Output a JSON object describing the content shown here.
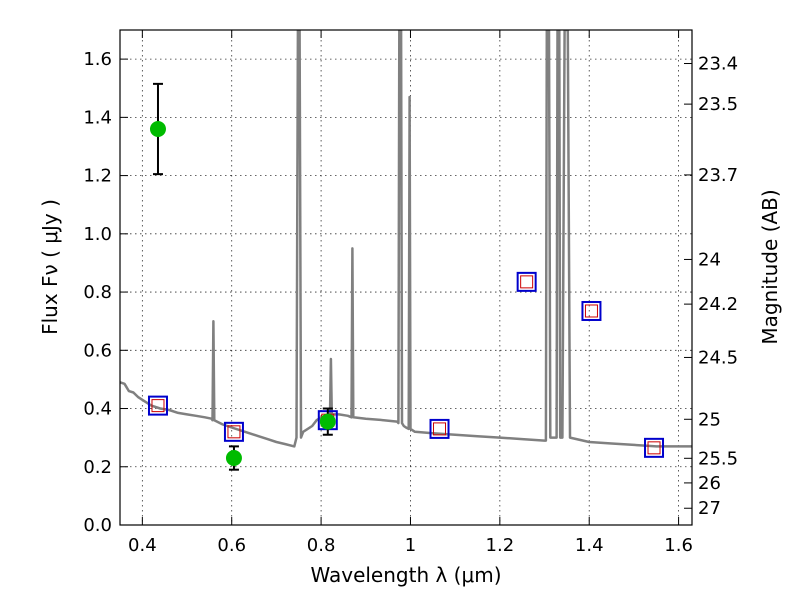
{
  "chart_data": {
    "type": "scatter",
    "xlabel": "Wavelength  λ (μm)",
    "ylabel_left": "Flux  Fν  ( μJy )",
    "ylabel_right": "Magnitude (AB)",
    "xlim": [
      0.35,
      1.63
    ],
    "ylim": [
      0.0,
      1.7
    ],
    "grid": true,
    "x_ticks": [
      {
        "value": 0.4,
        "label": "0.4"
      },
      {
        "value": 0.6,
        "label": "0.6"
      },
      {
        "value": 0.8,
        "label": "0.8"
      },
      {
        "value": 1.0,
        "label": "1"
      },
      {
        "value": 1.2,
        "label": "1.2"
      },
      {
        "value": 1.4,
        "label": "1.4"
      },
      {
        "value": 1.6,
        "label": "1.6"
      }
    ],
    "y_ticks": [
      {
        "value": 0.0,
        "label": "0.0"
      },
      {
        "value": 0.2,
        "label": "0.2"
      },
      {
        "value": 0.4,
        "label": "0.4"
      },
      {
        "value": 0.6,
        "label": "0.6"
      },
      {
        "value": 0.8,
        "label": "0.8"
      },
      {
        "value": 1.0,
        "label": "1.0"
      },
      {
        "value": 1.2,
        "label": "1.2"
      },
      {
        "value": 1.4,
        "label": "1.4"
      },
      {
        "value": 1.6,
        "label": "1.6"
      }
    ],
    "mag_ticks": [
      "23.4",
      "23.5",
      "23.7",
      "24",
      "24.2",
      "24.5",
      "25",
      "25.5",
      "26",
      "27"
    ],
    "colors": {
      "model": "#808080",
      "observed": "#00bb00",
      "observed_error": "#000000",
      "model_photometry_outer": "#0000cc",
      "model_photometry_inner": "#cc0000"
    },
    "series": [
      {
        "type": "line",
        "points": [
          [
            0.35,
            0.49
          ],
          [
            0.36,
            0.485
          ],
          [
            0.37,
            0.46
          ],
          [
            0.38,
            0.455
          ],
          [
            0.39,
            0.44
          ],
          [
            0.4,
            0.43
          ],
          [
            0.42,
            0.41
          ],
          [
            0.44,
            0.4
          ],
          [
            0.46,
            0.395
          ],
          [
            0.48,
            0.385
          ],
          [
            0.5,
            0.38
          ],
          [
            0.52,
            0.375
          ],
          [
            0.54,
            0.37
          ],
          [
            0.555,
            0.365
          ],
          [
            0.557,
            0.36
          ],
          [
            0.559,
            0.7
          ],
          [
            0.561,
            0.36
          ],
          [
            0.58,
            0.345
          ],
          [
            0.6,
            0.335
          ],
          [
            0.62,
            0.325
          ],
          [
            0.64,
            0.315
          ],
          [
            0.66,
            0.305
          ],
          [
            0.68,
            0.295
          ],
          [
            0.7,
            0.285
          ],
          [
            0.72,
            0.278
          ],
          [
            0.74,
            0.27
          ],
          [
            0.745,
            0.3
          ],
          [
            0.748,
            1.7
          ],
          [
            0.752,
            1.7
          ],
          [
            0.755,
            0.3
          ],
          [
            0.76,
            0.32
          ],
          [
            0.78,
            0.34
          ],
          [
            0.79,
            0.36
          ],
          [
            0.8,
            0.37
          ],
          [
            0.815,
            0.375
          ],
          [
            0.82,
            0.38
          ],
          [
            0.822,
            0.57
          ],
          [
            0.824,
            0.38
          ],
          [
            0.84,
            0.38
          ],
          [
            0.86,
            0.375
          ],
          [
            0.868,
            0.37
          ],
          [
            0.87,
            0.95
          ],
          [
            0.872,
            0.37
          ],
          [
            0.9,
            0.365
          ],
          [
            0.94,
            0.36
          ],
          [
            0.97,
            0.355
          ],
          [
            0.973,
            0.35
          ],
          [
            0.975,
            1.7
          ],
          [
            0.979,
            1.7
          ],
          [
            0.981,
            0.35
          ],
          [
            0.985,
            0.34
          ],
          [
            0.99,
            0.335
          ],
          [
            0.996,
            0.33
          ],
          [
            0.998,
            1.47
          ],
          [
            1.0,
            0.33
          ],
          [
            1.01,
            0.32
          ],
          [
            1.05,
            0.315
          ],
          [
            1.1,
            0.31
          ],
          [
            1.15,
            0.305
          ],
          [
            1.2,
            0.3
          ],
          [
            1.25,
            0.295
          ],
          [
            1.3,
            0.29
          ],
          [
            1.303,
            0.29
          ],
          [
            1.305,
            1.7
          ],
          [
            1.31,
            1.7
          ],
          [
            1.313,
            0.3
          ],
          [
            1.32,
            0.3
          ],
          [
            1.327,
            0.3
          ],
          [
            1.329,
            1.7
          ],
          [
            1.333,
            1.7
          ],
          [
            1.335,
            0.3
          ],
          [
            1.34,
            0.3
          ],
          [
            1.345,
            1.7
          ],
          [
            1.352,
            1.7
          ],
          [
            1.357,
            0.3
          ],
          [
            1.4,
            0.285
          ],
          [
            1.45,
            0.28
          ],
          [
            1.5,
            0.275
          ],
          [
            1.55,
            0.27
          ],
          [
            1.6,
            0.27
          ],
          [
            1.63,
            0.27
          ]
        ]
      },
      {
        "type": "scatter",
        "points": [
          {
            "x": 0.435,
            "y": 1.36,
            "err": 0.155
          },
          {
            "x": 0.605,
            "y": 0.23,
            "err": 0.04
          },
          {
            "x": 0.815,
            "y": 0.355,
            "err": 0.045
          }
        ]
      },
      {
        "type": "scatter",
        "points": [
          {
            "x": 0.435,
            "y": 0.41
          },
          {
            "x": 0.605,
            "y": 0.32
          },
          {
            "x": 0.815,
            "y": 0.36
          },
          {
            "x": 1.065,
            "y": 0.33
          },
          {
            "x": 1.26,
            "y": 0.835
          },
          {
            "x": 1.405,
            "y": 0.735
          },
          {
            "x": 1.545,
            "y": 0.265
          }
        ]
      }
    ]
  }
}
